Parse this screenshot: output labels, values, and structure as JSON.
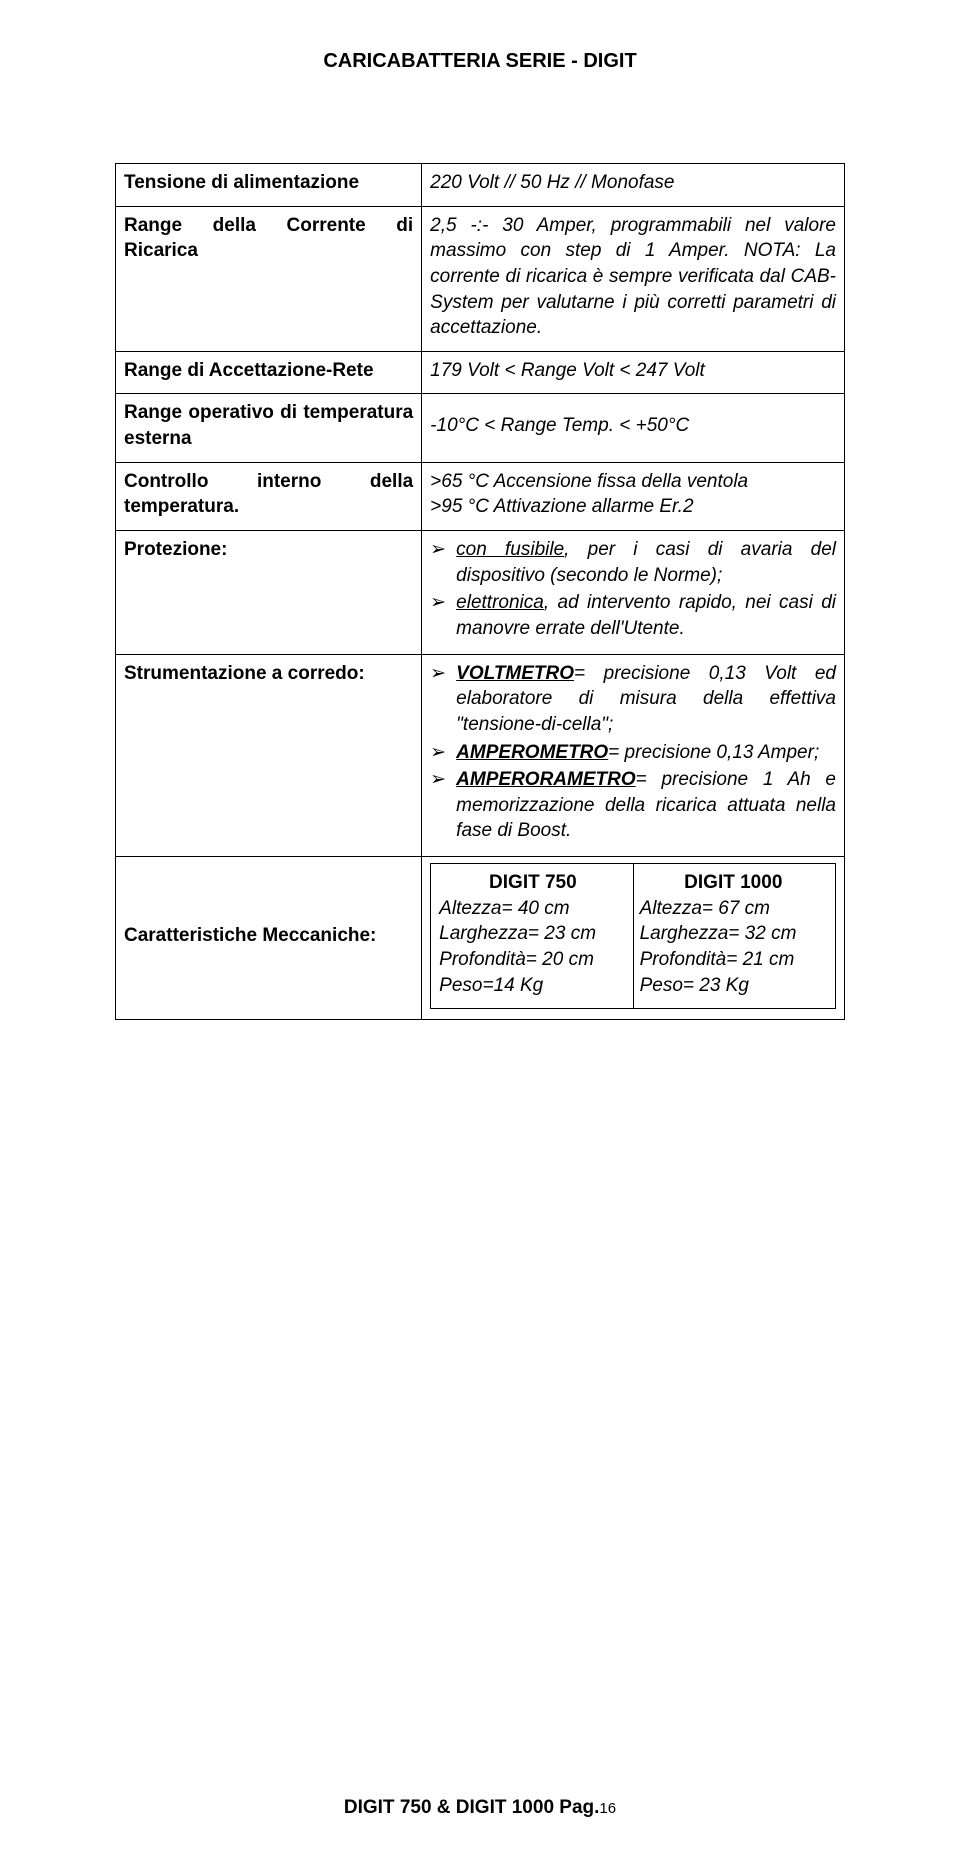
{
  "header": "CARICABATTERIA SERIE - DIGIT",
  "rows": {
    "r1_label": "Tensione di alimentazione",
    "r1_value": "220 Volt   //  50 Hz   //  Monofase",
    "r2_label": "Range della Corrente di Ricarica",
    "r2_value": "2,5 -:- 30 Amper, programmabili nel valore massimo con step di 1 Amper. NOTA: La corrente di ricarica è sempre verificata dal CAB-System per valutarne i più corretti parametri di accettazione.",
    "r3_label": "Range di Accettazione-Rete",
    "r3_value": "179 Volt <  Range Volt < 247 Volt",
    "r4_label": "Range operativo di temperatura esterna",
    "r4_value": "-10°C < Range Temp.  < +50°C",
    "r5_label": "Controllo interno della temperatura.",
    "r5_line1": ">65 °C  Accensione fissa della ventola",
    "r5_line2": ">95 °C Attivazione allarme Er.2",
    "r6_label": "Protezione:",
    "r6_b1_u": "con fusibile",
    "r6_b1_rest": ", per i casi di avaria del dispositivo (secondo le Norme);",
    "r6_b2_u": "elettronica",
    "r6_b2_rest": ", ad intervento rapido, nei casi di manovre errate dell'Utente.",
    "r7_label": "Strumentazione a corredo:",
    "r7_b1_u": "VOLTMETRO",
    "r7_b1_rest": "= precisione 0,13 Volt ed elaboratore di misura della effettiva \"tensione-di-cella\";",
    "r7_b2_u": "AMPEROMETRO",
    "r7_b2_rest": "= precisione 0,13 Amper;",
    "r7_b3_u": "AMPERORAMETRO",
    "r7_b3_rest": "= precisione 1 Ah e memorizzazione della ricarica attuata nella fase di Boost.",
    "r8_label": "Caratteristiche Meccaniche:",
    "mech_left_head": "DIGIT 750",
    "mech_left_1": "Altezza= 40 cm",
    "mech_left_2": "Larghezza= 23 cm",
    "mech_left_3": "Profondità= 20 cm",
    "mech_left_4": "Peso=14 Kg",
    "mech_right_head": "DIGIT 1000",
    "mech_right_1": "Altezza= 67 cm",
    "mech_right_2": "Larghezza= 32 cm",
    "mech_right_3": "Profondità= 21 cm",
    "mech_right_4": "Peso= 23 Kg"
  },
  "footer_main": "DIGIT 750 & DIGIT 1000 Pag.",
  "footer_page": "16"
}
